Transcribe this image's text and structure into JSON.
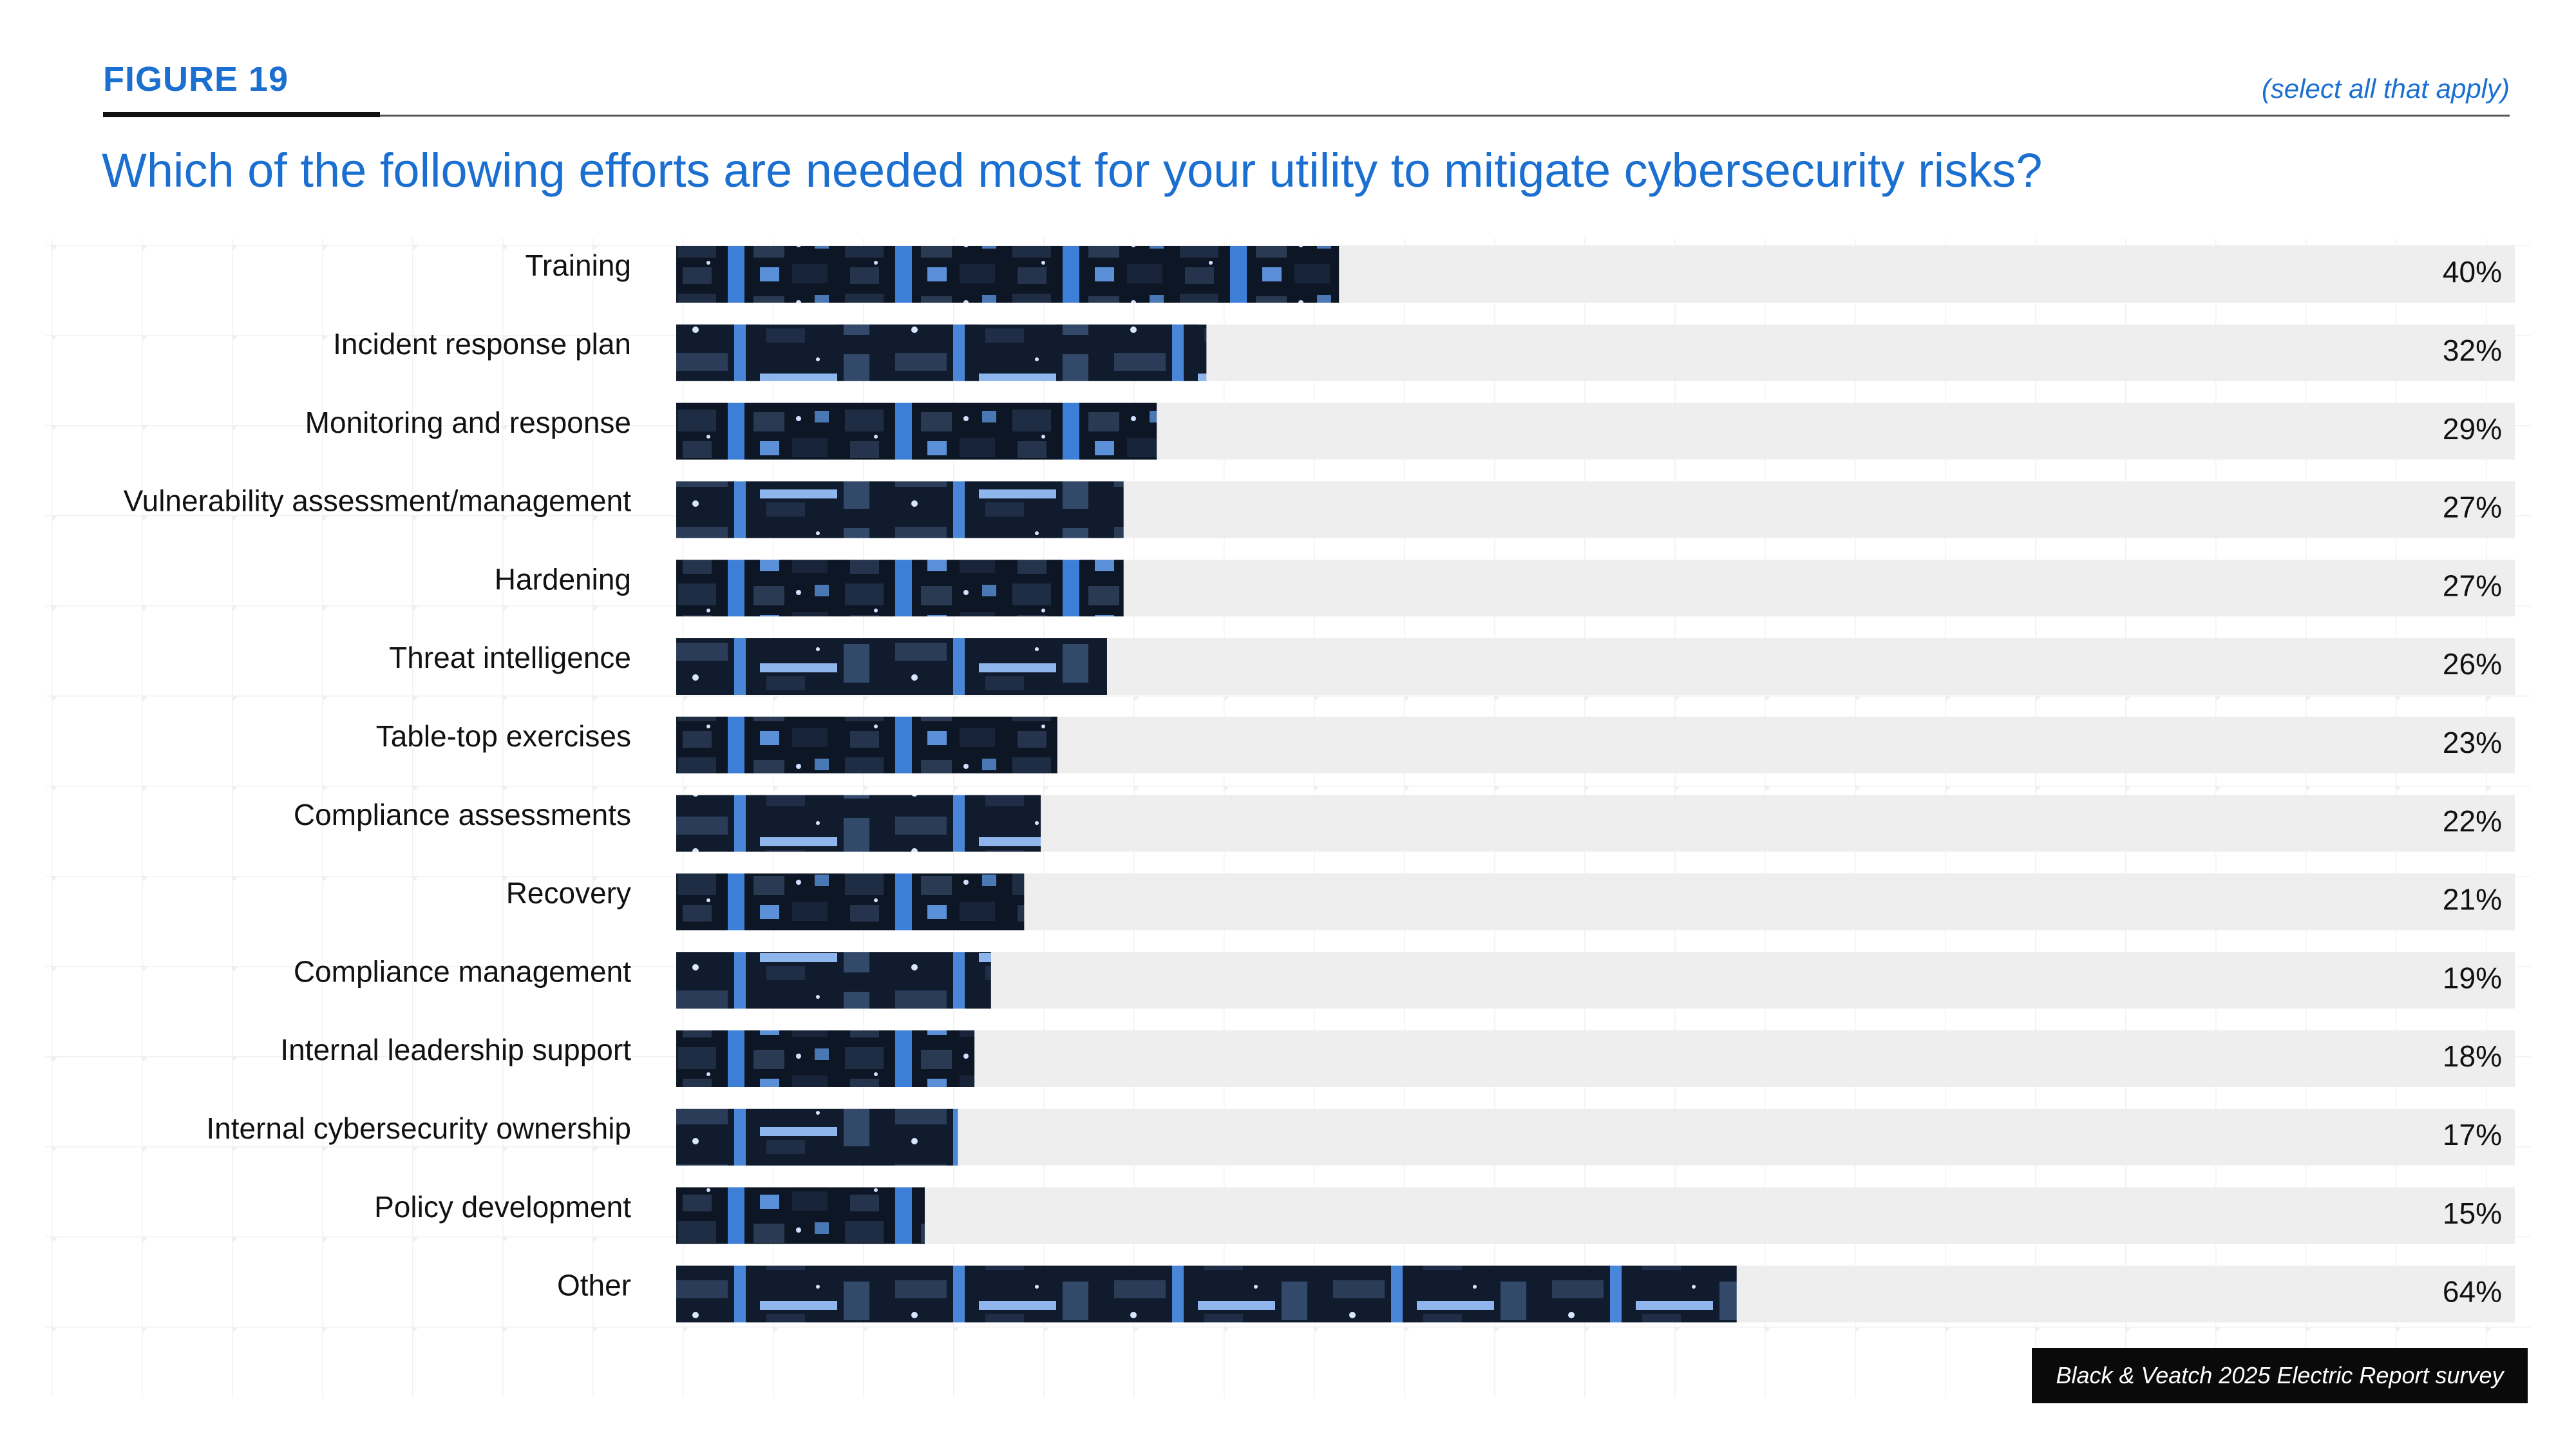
{
  "figure_label": "FIGURE 19",
  "note": "(select all that apply)",
  "question": "Which of the following efforts are needed most for your utility to mitigate cybersecurity risks?",
  "source": "Black & Veatch 2025 Electric Report survey",
  "colors": {
    "accent": "#1a6fd0",
    "bar_dark": "#0c1624",
    "bar_blue": "#3d7fd6",
    "track": "#eeeeee",
    "text": "#111111"
  },
  "chart_data": {
    "type": "bar",
    "orientation": "horizontal",
    "title": "Which of the following efforts are needed most for your utility to mitigate cybersecurity risks?",
    "xlabel": "",
    "ylabel": "",
    "xlim": [
      0,
      100
    ],
    "categories": [
      "Training",
      "Incident response plan",
      "Monitoring and response",
      "Vulnerability assessment/management",
      "Hardening",
      "Threat intelligence",
      "Table-top exercises",
      "Compliance assessments",
      "Recovery",
      "Compliance management",
      "Internal leadership support",
      "Internal cybersecurity ownership",
      "Policy development",
      "Other"
    ],
    "values": [
      40,
      32,
      29,
      27,
      27,
      26,
      23,
      22,
      21,
      19,
      18,
      17,
      15,
      64
    ],
    "labels": [
      "40%",
      "32%",
      "29%",
      "27%",
      "27%",
      "26%",
      "23%",
      "22%",
      "21%",
      "19%",
      "18%",
      "17%",
      "15%",
      "64%"
    ]
  }
}
